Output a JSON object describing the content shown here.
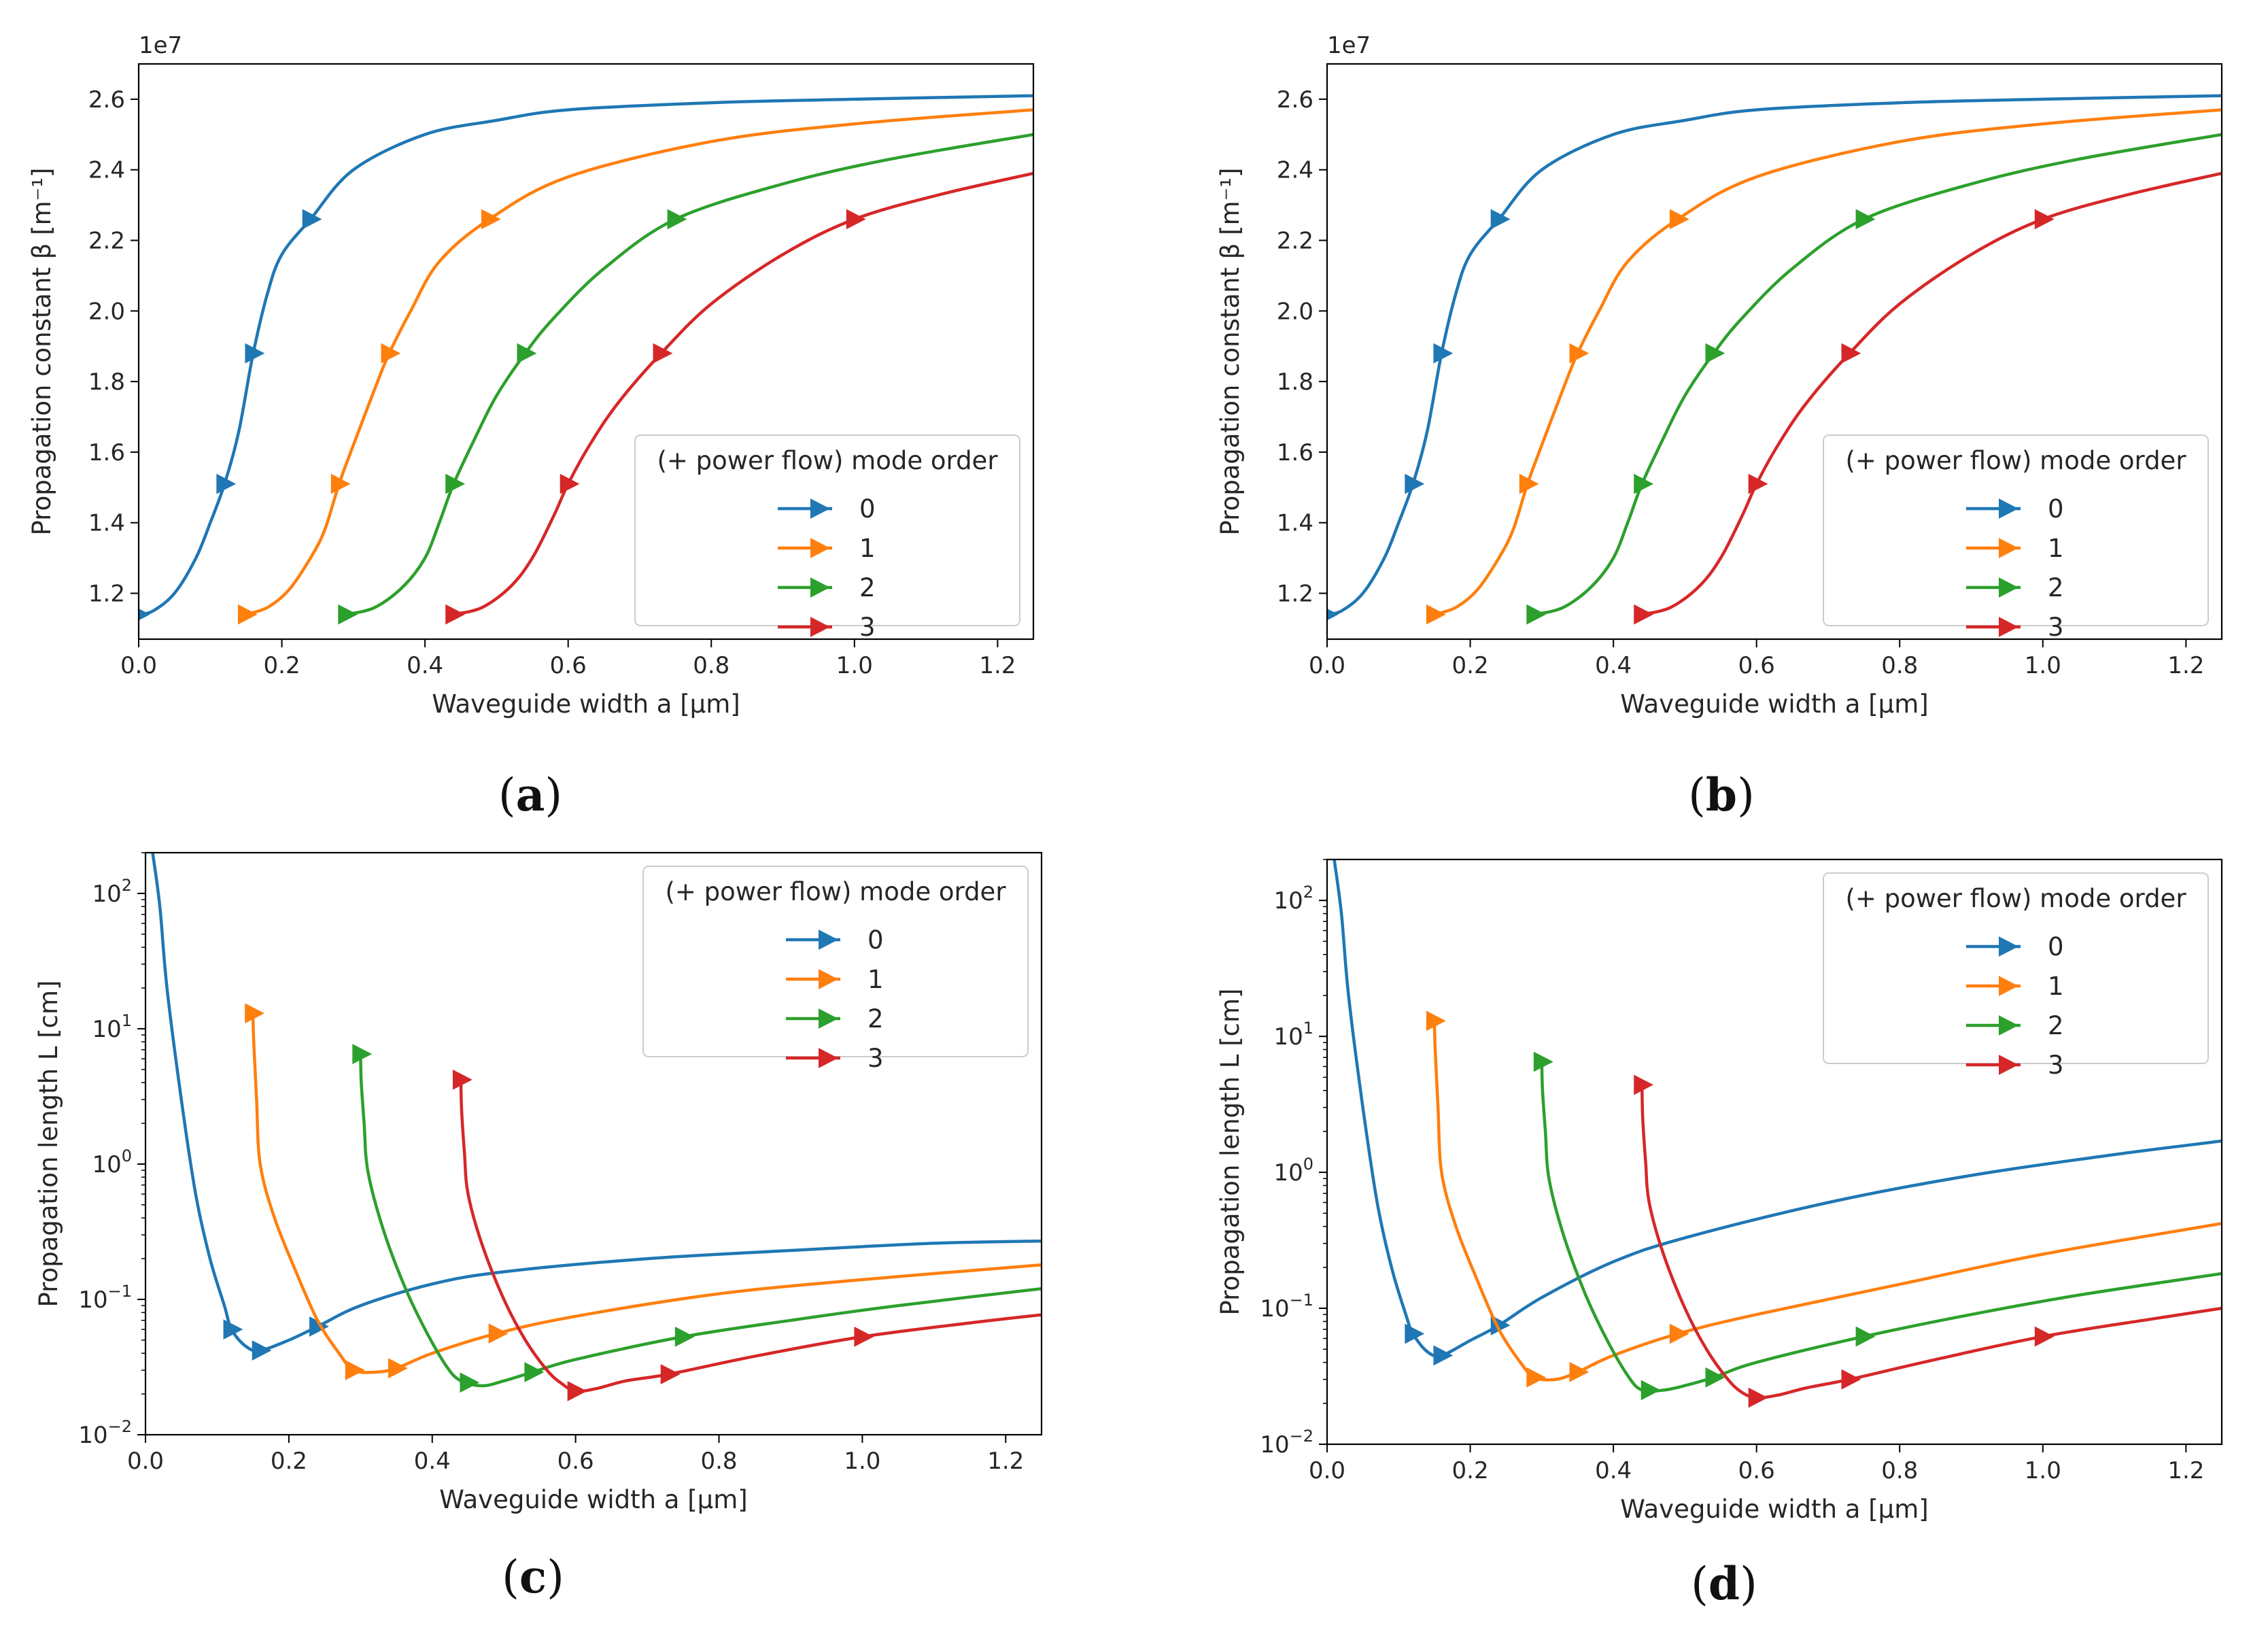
{
  "figure": {
    "captions": [
      {
        "open": "(",
        "letter": "a",
        "close": ")"
      },
      {
        "open": "(",
        "letter": "b",
        "close": ")"
      },
      {
        "open": "(",
        "letter": "c",
        "close": ")"
      },
      {
        "open": "(",
        "letter": "d",
        "close": ")"
      }
    ]
  },
  "legend": {
    "title": "(+ power flow) mode order",
    "entries": [
      "0",
      "1",
      "2",
      "3"
    ]
  },
  "colors": {
    "mode0": "#1f77b4",
    "mode1": "#ff7f0e",
    "mode2": "#2ca02c",
    "mode3": "#d62728",
    "axis": "#000000",
    "text": "#262626"
  },
  "chart_data": [
    {
      "panel": "a",
      "type": "line",
      "xlabel": "Waveguide width a [μm]",
      "ylabel": "Propagation constant β [m⁻¹]",
      "offset_text": "1e7",
      "xlim": [
        0.0,
        1.25
      ],
      "ylim": [
        1.07,
        2.7
      ],
      "yscale": "linear",
      "xticks": [
        0.0,
        0.2,
        0.4,
        0.6,
        0.8,
        1.0,
        1.2
      ],
      "xtick_labels": [
        "0.0",
        "0.2",
        "0.4",
        "0.6",
        "0.8",
        "1.0",
        "1.2"
      ],
      "yticks": [
        1.2,
        1.4,
        1.6,
        1.8,
        2.0,
        2.2,
        2.4,
        2.6
      ],
      "ytick_labels": [
        "1.2",
        "1.4",
        "1.6",
        "1.8",
        "2.0",
        "2.2",
        "2.4",
        "2.6"
      ],
      "legend_position": "lower-right",
      "series": [
        {
          "name": "0",
          "x": [
            0.0,
            0.02,
            0.05,
            0.08,
            0.1,
            0.12,
            0.14,
            0.16,
            0.18,
            0.2,
            0.24,
            0.3,
            0.4,
            0.5,
            0.6,
            0.8,
            1.0,
            1.25
          ],
          "y": [
            1.14,
            1.15,
            1.2,
            1.3,
            1.4,
            1.51,
            1.66,
            1.88,
            2.05,
            2.16,
            2.26,
            2.4,
            2.5,
            2.54,
            2.57,
            2.59,
            2.6,
            2.61
          ],
          "markers_x": [
            0.0,
            0.12,
            0.16,
            0.24
          ]
        },
        {
          "name": "1",
          "x": [
            0.15,
            0.18,
            0.21,
            0.24,
            0.26,
            0.28,
            0.3,
            0.33,
            0.35,
            0.38,
            0.42,
            0.49,
            0.6,
            0.8,
            1.0,
            1.25
          ],
          "y": [
            1.14,
            1.16,
            1.21,
            1.3,
            1.38,
            1.51,
            1.62,
            1.78,
            1.88,
            2.0,
            2.14,
            2.26,
            2.38,
            2.48,
            2.53,
            2.57
          ],
          "markers_x": [
            0.15,
            0.28,
            0.35,
            0.49
          ]
        },
        {
          "name": "2",
          "x": [
            0.29,
            0.33,
            0.37,
            0.4,
            0.42,
            0.44,
            0.47,
            0.5,
            0.54,
            0.58,
            0.65,
            0.75,
            0.9,
            1.05,
            1.25
          ],
          "y": [
            1.14,
            1.16,
            1.22,
            1.3,
            1.4,
            1.51,
            1.64,
            1.76,
            1.88,
            1.98,
            2.12,
            2.26,
            2.36,
            2.43,
            2.5
          ],
          "markers_x": [
            0.29,
            0.44,
            0.54,
            0.75
          ]
        },
        {
          "name": "3",
          "x": [
            0.44,
            0.48,
            0.52,
            0.55,
            0.58,
            0.6,
            0.63,
            0.67,
            0.73,
            0.8,
            0.9,
            1.0,
            1.12,
            1.25
          ],
          "y": [
            1.14,
            1.16,
            1.22,
            1.3,
            1.42,
            1.51,
            1.62,
            1.74,
            1.88,
            2.02,
            2.16,
            2.26,
            2.33,
            2.39
          ],
          "markers_x": [
            0.44,
            0.6,
            0.73,
            1.0
          ]
        }
      ]
    },
    {
      "panel": "b",
      "type": "line",
      "xlabel": "Waveguide width a [μm]",
      "ylabel": "Propagation constant β [m⁻¹]",
      "offset_text": "1e7",
      "xlim": [
        0.0,
        1.25
      ],
      "ylim": [
        1.07,
        2.7
      ],
      "yscale": "linear",
      "xticks": [
        0.0,
        0.2,
        0.4,
        0.6,
        0.8,
        1.0,
        1.2
      ],
      "xtick_labels": [
        "0.0",
        "0.2",
        "0.4",
        "0.6",
        "0.8",
        "1.0",
        "1.2"
      ],
      "yticks": [
        1.2,
        1.4,
        1.6,
        1.8,
        2.0,
        2.2,
        2.4,
        2.6
      ],
      "ytick_labels": [
        "1.2",
        "1.4",
        "1.6",
        "1.8",
        "2.0",
        "2.2",
        "2.4",
        "2.6"
      ],
      "legend_position": "lower-right",
      "series": [
        {
          "name": "0",
          "x": [
            0.0,
            0.02,
            0.05,
            0.08,
            0.1,
            0.12,
            0.14,
            0.16,
            0.18,
            0.2,
            0.24,
            0.3,
            0.4,
            0.5,
            0.6,
            0.8,
            1.0,
            1.25
          ],
          "y": [
            1.14,
            1.15,
            1.2,
            1.3,
            1.4,
            1.51,
            1.66,
            1.88,
            2.05,
            2.16,
            2.26,
            2.4,
            2.5,
            2.54,
            2.57,
            2.59,
            2.6,
            2.61
          ],
          "markers_x": [
            0.0,
            0.12,
            0.16,
            0.24
          ]
        },
        {
          "name": "1",
          "x": [
            0.15,
            0.18,
            0.21,
            0.24,
            0.26,
            0.28,
            0.3,
            0.33,
            0.35,
            0.38,
            0.42,
            0.49,
            0.6,
            0.8,
            1.0,
            1.25
          ],
          "y": [
            1.14,
            1.16,
            1.21,
            1.3,
            1.38,
            1.51,
            1.62,
            1.78,
            1.88,
            2.0,
            2.14,
            2.26,
            2.38,
            2.48,
            2.53,
            2.57
          ],
          "markers_x": [
            0.15,
            0.28,
            0.35,
            0.49
          ]
        },
        {
          "name": "2",
          "x": [
            0.29,
            0.33,
            0.37,
            0.4,
            0.42,
            0.44,
            0.47,
            0.5,
            0.54,
            0.58,
            0.65,
            0.75,
            0.9,
            1.05,
            1.25
          ],
          "y": [
            1.14,
            1.16,
            1.22,
            1.3,
            1.4,
            1.51,
            1.64,
            1.76,
            1.88,
            1.98,
            2.12,
            2.26,
            2.36,
            2.43,
            2.5
          ],
          "markers_x": [
            0.29,
            0.44,
            0.54,
            0.75
          ]
        },
        {
          "name": "3",
          "x": [
            0.44,
            0.48,
            0.52,
            0.55,
            0.58,
            0.6,
            0.63,
            0.67,
            0.73,
            0.8,
            0.9,
            1.0,
            1.12,
            1.25
          ],
          "y": [
            1.14,
            1.16,
            1.22,
            1.3,
            1.42,
            1.51,
            1.62,
            1.74,
            1.88,
            2.02,
            2.16,
            2.26,
            2.33,
            2.39
          ],
          "markers_x": [
            0.44,
            0.6,
            0.73,
            1.0
          ]
        }
      ]
    },
    {
      "panel": "c",
      "type": "line",
      "xlabel": "Waveguide width a [μm]",
      "ylabel": "Propagation length L [cm]",
      "xlim": [
        0.0,
        1.25
      ],
      "ylim": [
        0.01,
        200
      ],
      "yscale": "log",
      "xticks": [
        0.0,
        0.2,
        0.4,
        0.6,
        0.8,
        1.0,
        1.2
      ],
      "xtick_labels": [
        "0.0",
        "0.2",
        "0.4",
        "0.6",
        "0.8",
        "1.0",
        "1.2"
      ],
      "yticks": [
        0.01,
        0.1,
        1,
        10,
        100
      ],
      "ytick_labels": [
        {
          "base": "10",
          "exp": "−2"
        },
        {
          "base": "10",
          "exp": "−1"
        },
        {
          "base": "10",
          "exp": "0"
        },
        {
          "base": "10",
          "exp": "1"
        },
        {
          "base": "10",
          "exp": "2"
        }
      ],
      "legend_position": "upper-right",
      "series": [
        {
          "name": "0",
          "x": [
            0.01,
            0.02,
            0.03,
            0.05,
            0.07,
            0.09,
            0.11,
            0.12,
            0.14,
            0.16,
            0.2,
            0.24,
            0.3,
            0.4,
            0.5,
            0.7,
            0.9,
            1.1,
            1.25
          ],
          "y": [
            200,
            80,
            20,
            3.0,
            0.6,
            0.2,
            0.09,
            0.06,
            0.045,
            0.042,
            0.05,
            0.063,
            0.09,
            0.13,
            0.16,
            0.2,
            0.23,
            0.26,
            0.27
          ],
          "markers_x": [
            0.12,
            0.16,
            0.24
          ]
        },
        {
          "name": "1",
          "x": [
            0.15,
            0.151,
            0.155,
            0.16,
            0.18,
            0.21,
            0.24,
            0.27,
            0.29,
            0.32,
            0.35,
            0.4,
            0.49,
            0.6,
            0.8,
            1.0,
            1.25
          ],
          "y": [
            13,
            8,
            3.0,
            1.0,
            0.4,
            0.16,
            0.07,
            0.04,
            0.03,
            0.029,
            0.031,
            0.04,
            0.056,
            0.075,
            0.11,
            0.14,
            0.18
          ],
          "markers_x": [
            0.15,
            0.29,
            0.35,
            0.49
          ]
        },
        {
          "name": "2",
          "x": [
            0.3,
            0.301,
            0.305,
            0.31,
            0.33,
            0.36,
            0.39,
            0.42,
            0.44,
            0.47,
            0.5,
            0.54,
            0.6,
            0.75,
            0.9,
            1.05,
            1.25
          ],
          "y": [
            6.5,
            4.0,
            2.0,
            0.9,
            0.35,
            0.13,
            0.06,
            0.032,
            0.025,
            0.023,
            0.025,
            0.029,
            0.036,
            0.053,
            0.07,
            0.09,
            0.12
          ],
          "markers_x": [
            0.3,
            0.45,
            0.54,
            0.75
          ]
        },
        {
          "name": "3",
          "x": [
            0.44,
            0.441,
            0.445,
            0.45,
            0.47,
            0.5,
            0.53,
            0.56,
            0.58,
            0.6,
            0.63,
            0.67,
            0.73,
            0.85,
            1.0,
            1.15,
            1.25
          ],
          "y": [
            4.2,
            2.5,
            1.2,
            0.6,
            0.25,
            0.1,
            0.05,
            0.03,
            0.024,
            0.021,
            0.022,
            0.025,
            0.028,
            0.038,
            0.053,
            0.067,
            0.077
          ],
          "markers_x": [
            0.44,
            0.6,
            0.73,
            1.0
          ]
        }
      ]
    },
    {
      "panel": "d",
      "type": "line",
      "xlabel": "Waveguide width a [μm]",
      "ylabel": "Propagation length L [cm]",
      "xlim": [
        0.0,
        1.25
      ],
      "ylim": [
        0.01,
        200
      ],
      "yscale": "log",
      "xticks": [
        0.0,
        0.2,
        0.4,
        0.6,
        0.8,
        1.0,
        1.2
      ],
      "xtick_labels": [
        "0.0",
        "0.2",
        "0.4",
        "0.6",
        "0.8",
        "1.0",
        "1.2"
      ],
      "yticks": [
        0.01,
        0.1,
        1,
        10,
        100
      ],
      "ytick_labels": [
        {
          "base": "10",
          "exp": "−2"
        },
        {
          "base": "10",
          "exp": "−1"
        },
        {
          "base": "10",
          "exp": "0"
        },
        {
          "base": "10",
          "exp": "1"
        },
        {
          "base": "10",
          "exp": "2"
        }
      ],
      "legend_position": "upper-right",
      "series": [
        {
          "name": "0",
          "x": [
            0.01,
            0.02,
            0.03,
            0.05,
            0.07,
            0.09,
            0.11,
            0.12,
            0.14,
            0.16,
            0.2,
            0.24,
            0.3,
            0.4,
            0.5,
            0.7,
            0.9,
            1.1,
            1.25
          ],
          "y": [
            200,
            80,
            20,
            3.0,
            0.6,
            0.2,
            0.09,
            0.065,
            0.048,
            0.045,
            0.058,
            0.075,
            0.12,
            0.22,
            0.33,
            0.6,
            0.95,
            1.35,
            1.7
          ],
          "markers_x": [
            0.12,
            0.16,
            0.24
          ]
        },
        {
          "name": "1",
          "x": [
            0.15,
            0.151,
            0.155,
            0.16,
            0.18,
            0.21,
            0.24,
            0.27,
            0.29,
            0.32,
            0.35,
            0.4,
            0.49,
            0.6,
            0.8,
            1.0,
            1.25
          ],
          "y": [
            13,
            8,
            3.0,
            1.0,
            0.4,
            0.16,
            0.07,
            0.04,
            0.031,
            0.03,
            0.034,
            0.045,
            0.065,
            0.09,
            0.15,
            0.25,
            0.42
          ],
          "markers_x": [
            0.15,
            0.29,
            0.35,
            0.49
          ]
        },
        {
          "name": "2",
          "x": [
            0.3,
            0.301,
            0.305,
            0.31,
            0.33,
            0.36,
            0.39,
            0.42,
            0.44,
            0.47,
            0.5,
            0.54,
            0.6,
            0.75,
            0.9,
            1.05,
            1.25
          ],
          "y": [
            6.5,
            4.0,
            2.0,
            0.9,
            0.35,
            0.13,
            0.06,
            0.032,
            0.025,
            0.025,
            0.027,
            0.031,
            0.04,
            0.062,
            0.09,
            0.125,
            0.18
          ],
          "markers_x": [
            0.3,
            0.45,
            0.54,
            0.75
          ]
        },
        {
          "name": "3",
          "x": [
            0.44,
            0.441,
            0.445,
            0.45,
            0.47,
            0.5,
            0.53,
            0.56,
            0.58,
            0.6,
            0.63,
            0.67,
            0.73,
            0.85,
            1.0,
            1.15,
            1.25
          ],
          "y": [
            4.4,
            2.5,
            1.2,
            0.6,
            0.25,
            0.1,
            0.05,
            0.03,
            0.024,
            0.022,
            0.023,
            0.026,
            0.03,
            0.042,
            0.062,
            0.083,
            0.1
          ],
          "markers_x": [
            0.44,
            0.6,
            0.73,
            1.0
          ]
        }
      ]
    }
  ]
}
